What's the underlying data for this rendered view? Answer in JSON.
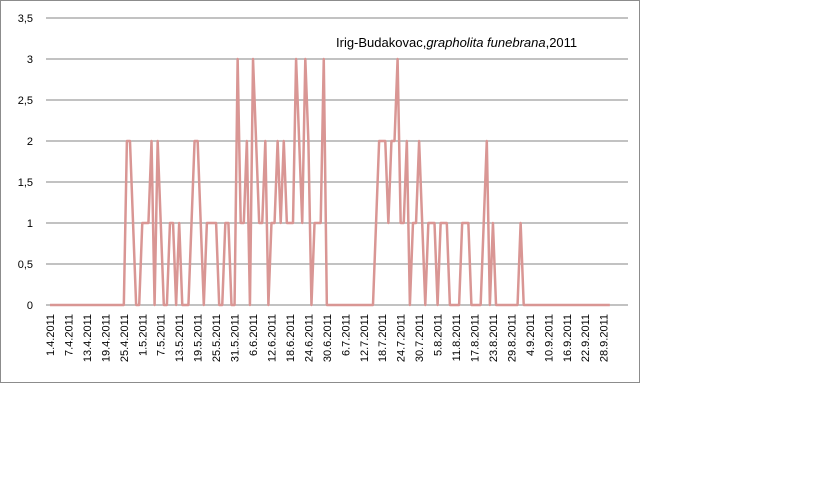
{
  "chart_data": {
    "type": "line",
    "title_prefix": "Irig-Budakovac,",
    "title_species": "grapholita funebrana",
    "title_suffix": ",2011",
    "xlabel": "",
    "ylabel": "",
    "ylim": [
      0,
      3.5
    ],
    "y_ticks": [
      "0",
      "0,5",
      "1",
      "1,5",
      "2",
      "2,5",
      "3",
      "3,5"
    ],
    "y_tick_values": [
      0,
      0.5,
      1,
      1.5,
      2,
      2.5,
      3,
      3.5
    ],
    "x_tick_labels": [
      "1.4.2011",
      "7.4.2011",
      "13.4.2011",
      "19.4.2011",
      "25.4.2011",
      "1.5.2011",
      "7.5.2011",
      "13.5.2011",
      "19.5.2011",
      "25.5.2011",
      "31.5.2011",
      "6.6.2011",
      "12.6.2011",
      "18.6.2011",
      "24.6.2011",
      "30.6.2011",
      "6.7.2011",
      "12.7.2011",
      "18.7.2011",
      "24.7.2011",
      "30.7.2011",
      "5.8.2011",
      "11.8.2011",
      "17.8.2011",
      "23.8.2011",
      "29.8.2011",
      "4.9.2011",
      "10.9.2011",
      "16.9.2011",
      "22.9.2011",
      "28.9.2011"
    ],
    "grid": true,
    "legend": "none",
    "series": [
      {
        "color": "#d99694",
        "values": [
          0,
          0,
          0,
          0,
          0,
          0,
          0,
          0,
          0,
          0,
          0,
          0,
          0,
          0,
          0,
          0,
          0,
          0,
          0,
          0,
          0,
          0,
          0,
          0,
          0,
          2,
          2,
          1,
          0,
          0,
          1,
          1,
          1,
          2,
          0,
          2,
          1,
          0,
          0,
          1,
          1,
          0,
          1,
          0,
          0,
          0,
          1,
          2,
          2,
          1,
          0,
          1,
          1,
          1,
          1,
          0,
          0,
          1,
          1,
          0,
          0,
          3,
          1,
          1,
          2,
          0,
          3,
          2,
          1,
          1,
          2,
          0,
          1,
          1,
          2,
          1,
          2,
          1,
          1,
          1,
          3,
          2,
          1,
          3,
          2,
          0,
          1,
          1,
          1,
          3,
          0,
          0,
          0,
          0,
          0,
          0,
          0,
          0,
          0,
          0,
          0,
          0,
          0,
          0,
          0,
          0,
          1,
          2,
          2,
          2,
          1,
          2,
          2,
          3,
          1,
          1,
          2,
          0,
          1,
          1,
          2,
          1,
          0,
          1,
          1,
          1,
          0,
          1,
          1,
          1,
          0,
          0,
          0,
          0,
          1,
          1,
          1,
          0,
          0,
          0,
          0,
          1,
          2,
          0,
          1,
          0,
          0,
          0,
          0,
          0,
          0,
          0,
          0,
          1,
          0,
          0,
          0,
          0,
          0,
          0,
          0,
          0,
          0,
          0,
          0,
          0,
          0,
          0,
          0,
          0,
          0,
          0,
          0,
          0,
          0,
          0,
          0,
          0,
          0,
          0,
          0,
          0,
          0
        ]
      }
    ]
  }
}
